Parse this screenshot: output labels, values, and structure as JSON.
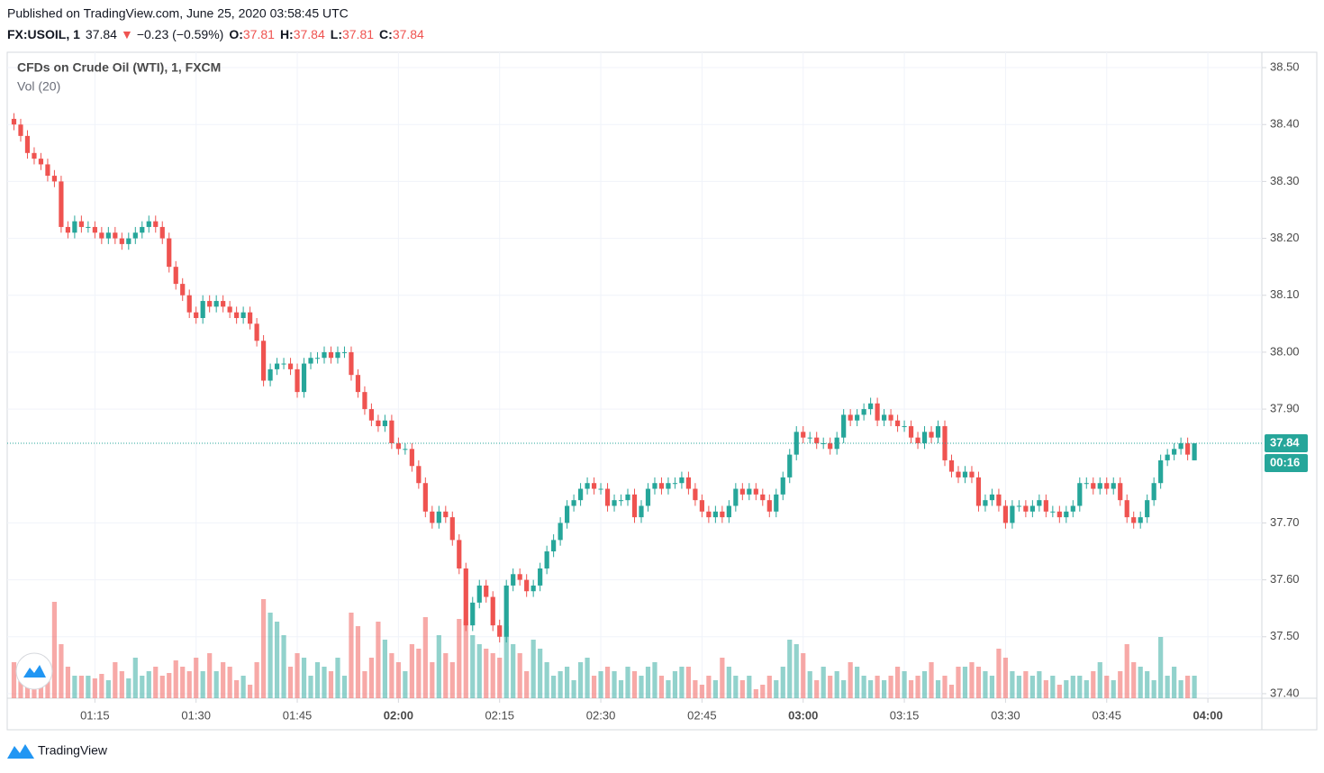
{
  "header": {
    "published": "Published on TradingView.com, June 25, 2020 03:58:45 UTC",
    "symbol": "FX:USOIL, 1",
    "last": 37.84,
    "arrow": "▼",
    "change": "−0.23 (−0.59%)",
    "ohlc_labels": [
      "O:",
      "H:",
      "L:",
      "C:"
    ],
    "ohlc": [
      37.81,
      37.84,
      37.81,
      37.84
    ]
  },
  "chart_data": {
    "type": "candlestick",
    "title": "CFDs on Crude Oil (WTI), 1, FXCM",
    "volume_label": "Vol (20)",
    "x": [
      "01:03",
      "01:04",
      "01:05",
      "01:06",
      "01:07",
      "01:08",
      "01:09",
      "01:10",
      "01:11",
      "01:12",
      "01:13",
      "01:14",
      "01:15",
      "01:16",
      "01:17",
      "01:18",
      "01:19",
      "01:20",
      "01:21",
      "01:22",
      "01:23",
      "01:24",
      "01:25",
      "01:26",
      "01:27",
      "01:28",
      "01:29",
      "01:30",
      "01:31",
      "01:32",
      "01:33",
      "01:34",
      "01:35",
      "01:36",
      "01:37",
      "01:38",
      "01:39",
      "01:40",
      "01:41",
      "01:42",
      "01:43",
      "01:44",
      "01:45",
      "01:46",
      "01:47",
      "01:48",
      "01:49",
      "01:50",
      "01:51",
      "01:52",
      "01:53",
      "01:54",
      "01:55",
      "01:56",
      "01:57",
      "01:58",
      "01:59",
      "02:00",
      "02:01",
      "02:02",
      "02:03",
      "02:04",
      "02:05",
      "02:06",
      "02:07",
      "02:08",
      "02:09",
      "02:10",
      "02:11",
      "02:12",
      "02:13",
      "02:14",
      "02:15",
      "02:16",
      "02:17",
      "02:18",
      "02:19",
      "02:20",
      "02:21",
      "02:22",
      "02:23",
      "02:24",
      "02:25",
      "02:26",
      "02:27",
      "02:28",
      "02:29",
      "02:30",
      "02:31",
      "02:32",
      "02:33",
      "02:34",
      "02:35",
      "02:36",
      "02:37",
      "02:38",
      "02:39",
      "02:40",
      "02:41",
      "02:42",
      "02:43",
      "02:44",
      "02:45",
      "02:46",
      "02:47",
      "02:48",
      "02:49",
      "02:50",
      "02:51",
      "02:52",
      "02:53",
      "02:54",
      "02:55",
      "02:56",
      "02:57",
      "02:58",
      "02:59",
      "03:00",
      "03:01",
      "03:02",
      "03:03",
      "03:04",
      "03:05",
      "03:06",
      "03:07",
      "03:08",
      "03:09",
      "03:10",
      "03:11",
      "03:12",
      "03:13",
      "03:14",
      "03:15",
      "03:16",
      "03:17",
      "03:18",
      "03:19",
      "03:20",
      "03:21",
      "03:22",
      "03:23",
      "03:24",
      "03:25",
      "03:26",
      "03:27",
      "03:28",
      "03:29",
      "03:30",
      "03:31",
      "03:32",
      "03:33",
      "03:34",
      "03:35",
      "03:36",
      "03:37",
      "03:38",
      "03:39",
      "03:40",
      "03:41",
      "03:42",
      "03:43",
      "03:44",
      "03:45",
      "03:46",
      "03:47",
      "03:48",
      "03:49",
      "03:50",
      "03:51",
      "03:52",
      "03:53",
      "03:54",
      "03:55",
      "03:56",
      "03:57",
      "03:58"
    ],
    "open": [
      38.41,
      38.4,
      38.38,
      38.35,
      38.34,
      38.33,
      38.31,
      38.3,
      38.22,
      38.21,
      38.23,
      38.22,
      38.22,
      38.21,
      38.2,
      38.21,
      38.2,
      38.19,
      38.2,
      38.21,
      38.22,
      38.23,
      38.22,
      38.2,
      38.15,
      38.12,
      38.1,
      38.07,
      38.06,
      38.09,
      38.08,
      38.09,
      38.08,
      38.07,
      38.06,
      38.07,
      38.05,
      38.02,
      37.95,
      37.97,
      37.98,
      37.98,
      37.97,
      37.93,
      37.98,
      37.99,
      37.99,
      38.0,
      37.99,
      38.0,
      38.0,
      37.96,
      37.93,
      37.9,
      37.88,
      37.87,
      37.88,
      37.84,
      37.83,
      37.83,
      37.8,
      37.77,
      37.72,
      37.7,
      37.72,
      37.71,
      37.67,
      37.62,
      37.52,
      37.56,
      37.59,
      37.57,
      37.52,
      37.5,
      37.59,
      37.61,
      37.6,
      37.58,
      37.59,
      37.62,
      37.65,
      37.67,
      37.7,
      37.73,
      37.74,
      37.76,
      37.77,
      37.76,
      37.76,
      37.73,
      37.74,
      37.74,
      37.75,
      37.71,
      37.73,
      37.76,
      37.77,
      37.76,
      37.77,
      37.77,
      37.78,
      37.76,
      37.74,
      37.72,
      37.71,
      37.72,
      37.71,
      37.73,
      37.76,
      37.75,
      37.76,
      37.75,
      37.74,
      37.72,
      37.75,
      37.78,
      37.82,
      37.86,
      37.85,
      37.85,
      37.84,
      37.84,
      37.83,
      37.85,
      37.89,
      37.88,
      37.89,
      37.9,
      37.91,
      37.88,
      37.89,
      37.88,
      37.87,
      37.87,
      37.85,
      37.84,
      37.86,
      37.85,
      37.87,
      37.81,
      37.79,
      37.78,
      37.79,
      37.78,
      37.73,
      37.74,
      37.75,
      37.73,
      37.7,
      37.73,
      37.73,
      37.72,
      37.73,
      37.74,
      37.72,
      37.72,
      37.71,
      37.72,
      37.73,
      37.77,
      37.77,
      37.76,
      37.77,
      37.76,
      37.77,
      37.74,
      37.71,
      37.7,
      37.71,
      37.74,
      37.77,
      37.81,
      37.82,
      37.83,
      37.84,
      37.81
    ],
    "high": [
      38.42,
      38.41,
      38.39,
      38.36,
      38.35,
      38.34,
      38.32,
      38.31,
      38.23,
      38.24,
      38.24,
      38.23,
      38.23,
      38.22,
      38.22,
      38.22,
      38.21,
      38.21,
      38.22,
      38.23,
      38.24,
      38.24,
      38.23,
      38.21,
      38.16,
      38.13,
      38.11,
      38.08,
      38.1,
      38.1,
      38.1,
      38.1,
      38.09,
      38.08,
      38.08,
      38.08,
      38.06,
      38.03,
      37.98,
      37.99,
      37.99,
      37.99,
      37.98,
      37.99,
      38.0,
      38.0,
      38.01,
      38.01,
      38.01,
      38.01,
      38.01,
      37.97,
      37.94,
      37.91,
      37.89,
      37.89,
      37.89,
      37.85,
      37.84,
      37.84,
      37.81,
      37.78,
      37.73,
      37.73,
      37.73,
      37.72,
      37.68,
      37.63,
      37.57,
      37.6,
      37.6,
      37.58,
      37.53,
      37.6,
      37.62,
      37.62,
      37.61,
      37.6,
      37.63,
      37.66,
      37.68,
      37.71,
      37.74,
      37.75,
      37.77,
      37.78,
      37.78,
      37.77,
      37.77,
      37.75,
      37.75,
      37.76,
      37.76,
      37.74,
      37.77,
      37.78,
      37.78,
      37.78,
      37.78,
      37.79,
      37.79,
      37.77,
      37.75,
      37.73,
      37.73,
      37.73,
      37.74,
      37.77,
      37.77,
      37.77,
      37.77,
      37.76,
      37.75,
      37.76,
      37.79,
      37.83,
      37.87,
      37.87,
      37.86,
      37.86,
      37.85,
      37.85,
      37.86,
      37.9,
      37.9,
      37.9,
      37.91,
      37.92,
      37.92,
      37.9,
      37.9,
      37.89,
      37.88,
      37.88,
      37.86,
      37.87,
      37.87,
      37.88,
      37.88,
      37.82,
      37.8,
      37.8,
      37.8,
      37.79,
      37.75,
      37.76,
      37.76,
      37.74,
      37.74,
      37.74,
      37.74,
      37.74,
      37.75,
      37.75,
      37.73,
      37.73,
      37.73,
      37.74,
      37.78,
      37.78,
      37.78,
      37.78,
      37.78,
      37.78,
      37.78,
      37.75,
      37.72,
      37.72,
      37.75,
      37.78,
      37.82,
      37.83,
      37.84,
      37.85,
      37.85,
      37.84
    ],
    "low": [
      38.39,
      38.37,
      38.34,
      38.33,
      38.32,
      38.3,
      38.29,
      38.21,
      38.2,
      38.2,
      38.21,
      38.21,
      38.2,
      38.19,
      38.19,
      38.19,
      38.18,
      38.18,
      38.19,
      38.2,
      38.21,
      38.21,
      38.19,
      38.14,
      38.11,
      38.09,
      38.06,
      38.05,
      38.05,
      38.07,
      38.07,
      38.07,
      38.06,
      38.05,
      38.05,
      38.04,
      38.01,
      37.94,
      37.94,
      37.96,
      37.97,
      37.96,
      37.92,
      37.92,
      37.97,
      37.98,
      37.98,
      37.98,
      37.98,
      37.99,
      37.95,
      37.92,
      37.89,
      37.87,
      37.86,
      37.86,
      37.83,
      37.82,
      37.82,
      37.79,
      37.76,
      37.71,
      37.69,
      37.69,
      37.7,
      37.66,
      37.61,
      37.51,
      37.51,
      37.55,
      37.56,
      37.51,
      37.49,
      37.49,
      37.58,
      37.59,
      37.57,
      37.57,
      37.58,
      37.61,
      37.64,
      37.66,
      37.69,
      37.72,
      37.73,
      37.75,
      37.75,
      37.75,
      37.72,
      37.72,
      37.73,
      37.73,
      37.7,
      37.7,
      37.72,
      37.75,
      37.75,
      37.75,
      37.76,
      37.76,
      37.75,
      37.73,
      37.71,
      37.7,
      37.7,
      37.7,
      37.7,
      37.72,
      37.74,
      37.74,
      37.74,
      37.73,
      37.71,
      37.71,
      37.74,
      37.77,
      37.81,
      37.84,
      37.84,
      37.83,
      37.83,
      37.82,
      37.82,
      37.84,
      37.87,
      37.87,
      37.88,
      37.89,
      37.87,
      37.87,
      37.87,
      37.86,
      37.86,
      37.84,
      37.83,
      37.83,
      37.84,
      37.84,
      37.8,
      37.78,
      37.77,
      37.77,
      37.77,
      37.72,
      37.72,
      37.73,
      37.72,
      37.69,
      37.69,
      37.72,
      37.71,
      37.71,
      37.72,
      37.71,
      37.71,
      37.7,
      37.7,
      37.71,
      37.72,
      37.76,
      37.75,
      37.75,
      37.75,
      37.75,
      37.73,
      37.7,
      37.69,
      37.69,
      37.7,
      37.73,
      37.76,
      37.8,
      37.81,
      37.82,
      37.81,
      37.81
    ],
    "close": [
      38.4,
      38.38,
      38.35,
      38.34,
      38.33,
      38.31,
      38.3,
      38.22,
      38.21,
      38.23,
      38.22,
      38.22,
      38.21,
      38.2,
      38.21,
      38.2,
      38.19,
      38.2,
      38.21,
      38.22,
      38.23,
      38.22,
      38.2,
      38.15,
      38.12,
      38.1,
      38.07,
      38.06,
      38.09,
      38.08,
      38.09,
      38.08,
      38.07,
      38.06,
      38.07,
      38.05,
      38.02,
      37.95,
      37.97,
      37.98,
      37.98,
      37.97,
      37.93,
      37.98,
      37.99,
      37.99,
      38.0,
      37.99,
      38.0,
      38.0,
      37.96,
      37.93,
      37.9,
      37.88,
      37.87,
      37.88,
      37.84,
      37.83,
      37.83,
      37.8,
      37.77,
      37.72,
      37.7,
      37.72,
      37.71,
      37.67,
      37.62,
      37.52,
      37.56,
      37.59,
      37.57,
      37.52,
      37.5,
      37.59,
      37.61,
      37.6,
      37.58,
      37.59,
      37.62,
      37.65,
      37.67,
      37.7,
      37.73,
      37.74,
      37.76,
      37.77,
      37.76,
      37.76,
      37.73,
      37.74,
      37.74,
      37.75,
      37.71,
      37.73,
      37.76,
      37.77,
      37.76,
      37.77,
      37.77,
      37.78,
      37.76,
      37.74,
      37.72,
      37.71,
      37.72,
      37.71,
      37.73,
      37.76,
      37.75,
      37.76,
      37.75,
      37.74,
      37.72,
      37.75,
      37.78,
      37.82,
      37.86,
      37.85,
      37.85,
      37.84,
      37.84,
      37.83,
      37.85,
      37.89,
      37.88,
      37.89,
      37.9,
      37.91,
      37.88,
      37.89,
      37.88,
      37.87,
      37.87,
      37.85,
      37.84,
      37.86,
      37.85,
      37.87,
      37.81,
      37.79,
      37.78,
      37.79,
      37.78,
      37.73,
      37.74,
      37.75,
      37.73,
      37.7,
      37.73,
      37.73,
      37.72,
      37.73,
      37.74,
      37.72,
      37.72,
      37.71,
      37.72,
      37.73,
      37.77,
      37.77,
      37.76,
      37.77,
      37.76,
      37.77,
      37.74,
      37.71,
      37.7,
      37.71,
      37.74,
      37.77,
      37.81,
      37.82,
      37.83,
      37.84,
      37.82,
      37.84
    ],
    "volume": [
      40,
      25,
      30,
      20,
      15,
      25,
      107,
      60,
      35,
      25,
      25,
      25,
      22,
      27,
      20,
      40,
      30,
      22,
      45,
      25,
      30,
      35,
      25,
      28,
      42,
      35,
      30,
      45,
      30,
      50,
      30,
      40,
      35,
      20,
      25,
      15,
      40,
      110,
      95,
      85,
      70,
      35,
      50,
      45,
      25,
      40,
      35,
      30,
      45,
      25,
      95,
      80,
      30,
      45,
      85,
      65,
      50,
      40,
      30,
      60,
      55,
      90,
      40,
      70,
      50,
      40,
      88,
      85,
      70,
      60,
      55,
      50,
      45,
      80,
      60,
      50,
      30,
      65,
      55,
      40,
      25,
      30,
      35,
      20,
      40,
      45,
      25,
      30,
      35,
      30,
      20,
      35,
      30,
      25,
      35,
      40,
      25,
      20,
      30,
      35,
      35,
      20,
      15,
      25,
      20,
      45,
      35,
      25,
      20,
      25,
      10,
      15,
      25,
      20,
      35,
      65,
      60,
      50,
      30,
      20,
      35,
      25,
      30,
      20,
      40,
      35,
      25,
      20,
      25,
      20,
      25,
      35,
      30,
      20,
      25,
      30,
      40,
      20,
      25,
      15,
      35,
      35,
      40,
      35,
      30,
      25,
      55,
      45,
      30,
      25,
      30,
      25,
      30,
      20,
      25,
      15,
      20,
      25,
      25,
      20,
      30,
      40,
      25,
      20,
      30,
      60,
      40,
      35,
      30,
      20,
      68,
      25,
      35,
      20,
      25,
      25
    ],
    "up_color": "#26a69a",
    "down_color": "#ef5350",
    "ylim": [
      37.392,
      38.527
    ],
    "yticks": [
      {
        "value": 37.4,
        "label": "37.40"
      },
      {
        "value": 37.5,
        "label": "37.50"
      },
      {
        "value": 37.6,
        "label": "37.60"
      },
      {
        "value": 37.7,
        "label": "37.70"
      },
      {
        "value": 37.9,
        "label": "37.90"
      },
      {
        "value": 38,
        "label": "38.00"
      },
      {
        "value": 38.1,
        "label": "38.10"
      },
      {
        "value": 38.2,
        "label": "38.20"
      },
      {
        "value": 38.3,
        "label": "38.30"
      },
      {
        "value": 38.4,
        "label": "38.40"
      },
      {
        "value": 38.5,
        "label": "38.50"
      }
    ],
    "xlim": [
      "01:02",
      "04:08"
    ],
    "xticks": [
      "01:15",
      "01:30",
      "01:45",
      "02:00",
      "02:15",
      "02:30",
      "02:45",
      "03:00",
      "03:15",
      "03:30",
      "03:45",
      "04:00"
    ],
    "last_price": 37.84,
    "countdown": "00:16",
    "grid": true
  },
  "footer": {
    "brand": "TradingView"
  }
}
